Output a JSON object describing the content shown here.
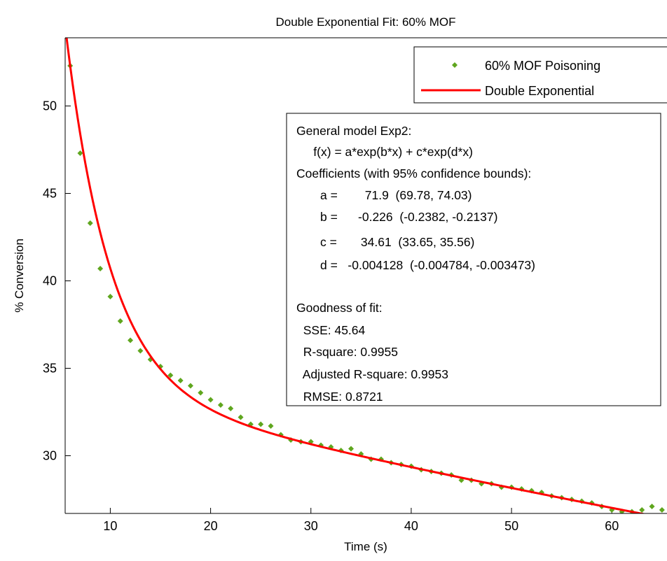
{
  "chart_data": {
    "type": "scatter",
    "title": "Double Exponential Fit: 60% MOF",
    "xlabel": "Time (s)",
    "ylabel": "% Conversion",
    "xlim": [
      5.5,
      65.5
    ],
    "ylim": [
      26.7,
      53.9
    ],
    "xticks": [
      10,
      20,
      30,
      40,
      50,
      60
    ],
    "yticks": [
      30,
      35,
      40,
      45,
      50
    ],
    "grid": false,
    "legend_position": "top-right",
    "series": [
      {
        "name": "60% MOF Poisoning",
        "kind": "markers",
        "color": "#5fa61e",
        "x": [
          6,
          7,
          8,
          9,
          10,
          11,
          12,
          13,
          14,
          15,
          16,
          17,
          18,
          19,
          20,
          21,
          22,
          23,
          24,
          25,
          26,
          27,
          28,
          29,
          30,
          31,
          32,
          33,
          34,
          35,
          36,
          37,
          38,
          39,
          40,
          41,
          42,
          43,
          44,
          45,
          46,
          47,
          48,
          49,
          50,
          51,
          52,
          53,
          54,
          55,
          56,
          57,
          58,
          59,
          60,
          61,
          62,
          63,
          64,
          65
        ],
        "y": [
          52.3,
          47.3,
          43.3,
          40.7,
          39.1,
          37.7,
          36.6,
          36.0,
          35.5,
          35.1,
          34.6,
          34.3,
          34.0,
          33.6,
          33.2,
          32.9,
          32.7,
          32.2,
          31.8,
          31.8,
          31.7,
          31.2,
          30.9,
          30.8,
          30.8,
          30.6,
          30.5,
          30.3,
          30.4,
          30.1,
          29.8,
          29.8,
          29.6,
          29.5,
          29.4,
          29.2,
          29.1,
          29.0,
          28.9,
          28.6,
          28.6,
          28.4,
          28.4,
          28.2,
          28.2,
          28.1,
          28.0,
          27.9,
          27.7,
          27.6,
          27.5,
          27.4,
          27.3,
          27.1,
          26.9,
          26.8,
          26.8,
          26.9,
          27.1,
          26.9
        ]
      },
      {
        "name": "Double Exponential",
        "kind": "line",
        "color": "#ff0000",
        "model": {
          "a": 71.9,
          "b": -0.226,
          "c": 34.61,
          "d": -0.004128
        }
      }
    ],
    "annotation_box": {
      "lines": [
        "General model Exp2:",
        "     f(x) = a*exp(b*x) + c*exp(d*x)",
        "Coefficients (with 95% confidence bounds):",
        "       a =        71.9  (69.78, 74.03)",
        "       b =      -0.226  (-0.2382, -0.2137)",
        "       c =       34.61  (33.65, 35.56)",
        "       d =   -0.004128  (-0.004784, -0.003473)",
        "",
        "Goodness of fit:",
        "  SSE: 45.64",
        "  R-square: 0.9955",
        "  Adjusted R-square: 0.9953",
        "  RMSE: 0.8721"
      ]
    }
  }
}
